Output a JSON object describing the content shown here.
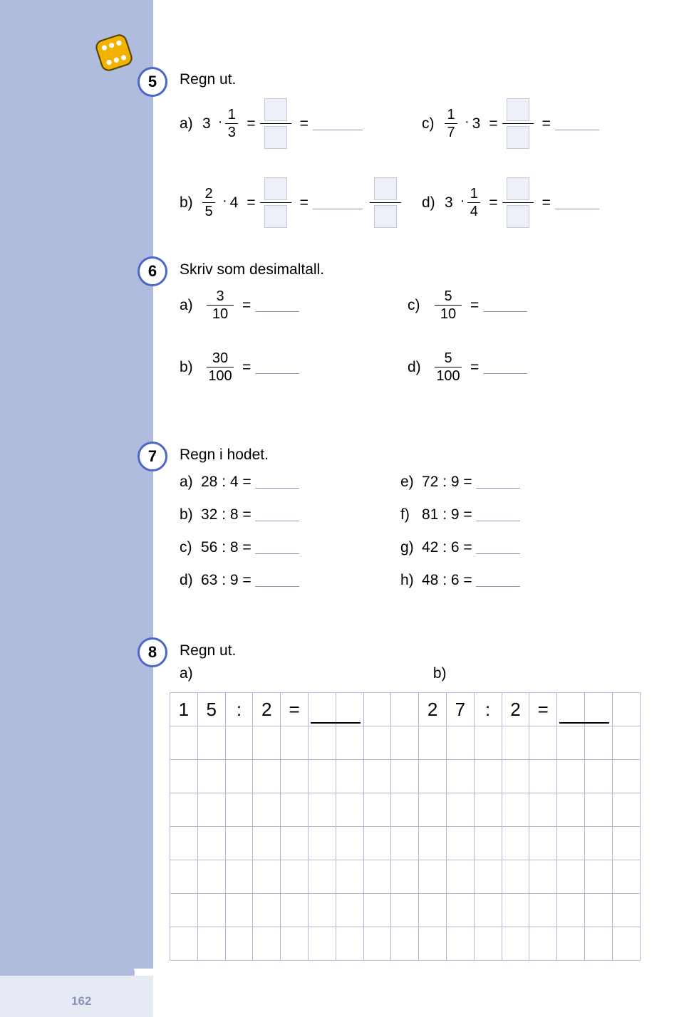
{
  "page_number": "162",
  "colors": {
    "sidebar": "#b0bcde",
    "badge_border": "#4b67c8",
    "blank_box_fill": "#eef0f7",
    "blank_box_border": "#c3c9dc",
    "grid_border": "#aeb9d6",
    "answer_line": "#8a94b6",
    "dice_yellow": "#f2b200",
    "dice_outline": "#5b4500"
  },
  "ex5": {
    "number": "5",
    "title": "Regn ut.",
    "items": {
      "a": {
        "label": "a)",
        "lead": "3",
        "op": "·",
        "frac_n": "1",
        "frac_d": "3"
      },
      "c": {
        "label": "c)",
        "frac_n": "1",
        "frac_d": "7",
        "op": "·",
        "tail": "3"
      },
      "b": {
        "label": "b)",
        "frac_n": "2",
        "frac_d": "5",
        "op": "·",
        "tail": "4"
      },
      "d": {
        "label": "d)",
        "lead": "3",
        "op": "·",
        "frac_n": "1",
        "frac_d": "4"
      }
    }
  },
  "ex6": {
    "number": "6",
    "title": "Skriv som desimaltall.",
    "items": {
      "a": {
        "label": "a)",
        "n": "3",
        "d": "10"
      },
      "c": {
        "label": "c)",
        "n": "5",
        "d": "10"
      },
      "b": {
        "label": "b)",
        "n": "30",
        "d": "100"
      },
      "d": {
        "label": "d)",
        "n": "5",
        "d": "100"
      }
    }
  },
  "ex7": {
    "number": "7",
    "title": "Regn i hodet.",
    "left": [
      {
        "label": "a)",
        "expr": "28 : 4 ="
      },
      {
        "label": "b)",
        "expr": "32 : 8 ="
      },
      {
        "label": "c)",
        "expr": "56 : 8 ="
      },
      {
        "label": "d)",
        "expr": "63 : 9 ="
      }
    ],
    "right": [
      {
        "label": "e)",
        "expr": "72 : 9 ="
      },
      {
        "label": "f)",
        "expr": "81 : 9 ="
      },
      {
        "label": "g)",
        "expr": "42 : 6 ="
      },
      {
        "label": "h)",
        "expr": "48 : 6 ="
      }
    ]
  },
  "ex8": {
    "number": "8",
    "title": "Regn ut.",
    "a_label": "a)",
    "b_label": "b)",
    "grid": {
      "cols": 17,
      "rows": 8,
      "cells_row0": [
        "1",
        "5",
        ":",
        "2",
        "=",
        "",
        "",
        "",
        "",
        "2",
        "7",
        ":",
        "2",
        "=",
        "",
        "",
        ""
      ]
    }
  }
}
